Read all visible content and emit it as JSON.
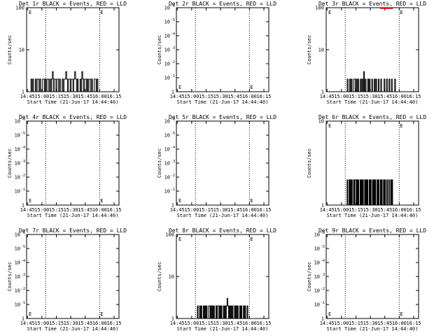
{
  "colors": {
    "events": "#000000",
    "lld": "#ff0000",
    "background": "#ffffff"
  },
  "x_axis": {
    "label": "Start Time (21-Jun-17 14:44:40)",
    "ticks": [
      "14:45",
      "15:00",
      "15:15",
      "15:30",
      "15:45",
      "16:00",
      "16:15"
    ]
  },
  "y_axis_label": "Counts/sec",
  "chart_data": [
    {
      "type": "line",
      "title": "Det 1r BLACK = Events, RED = LLD",
      "y_scale": "log",
      "y_ticks": [
        "1",
        "10",
        "100"
      ],
      "xlim": [
        0,
        29
      ],
      "dotted_lines_x": [
        6,
        23
      ],
      "event_markers": [
        "E",
        "E"
      ],
      "series": [
        {
          "color": "#000000",
          "values": [
            2,
            1,
            2,
            1,
            1,
            2,
            1,
            2,
            2,
            1,
            2,
            1,
            1,
            2,
            2,
            1,
            2,
            1,
            2,
            2,
            1,
            2,
            1,
            2,
            3,
            1,
            2,
            2,
            1,
            2,
            2,
            1,
            2,
            1,
            1,
            2,
            1,
            2,
            2,
            3,
            2,
            1,
            2,
            2,
            1,
            2,
            2,
            1,
            2,
            3,
            2,
            1,
            2,
            1,
            1,
            2,
            1,
            3,
            2,
            1,
            2,
            2,
            1,
            2,
            1,
            2,
            2,
            1,
            2,
            1,
            1,
            2,
            2,
            1,
            2,
            1
          ]
        }
      ],
      "series_x_range": [
        1.5,
        25
      ]
    },
    {
      "type": "line",
      "title": "Det 2r BLACK = Events, RED = LLD",
      "y_scale": "log",
      "y_ticks": [
        "1",
        "10",
        "10",
        "10",
        "10",
        "10",
        "10"
      ],
      "y_tick_exponents": [
        "",
        "-1",
        "-2",
        "-3",
        "-4",
        "-5",
        "-6"
      ],
      "xlim": [
        0,
        29
      ],
      "dotted_lines_x": [
        6,
        23
      ],
      "event_markers": [
        "E",
        "E"
      ]
    },
    {
      "type": "line",
      "title": "Det 3r BLACK = Events, RED = LLD",
      "y_scale": "log",
      "y_ticks": [
        "1",
        "10",
        "100"
      ],
      "xlim": [
        0,
        29
      ],
      "dotted_lines_x": [
        6,
        23
      ],
      "event_markers": [
        "E",
        "E"
      ],
      "series": [
        {
          "color": "#000000",
          "values": [
            1,
            2,
            1,
            1,
            2,
            1,
            2,
            1,
            1,
            2,
            2,
            1,
            2,
            1,
            2,
            1,
            1,
            2,
            1,
            2,
            1,
            3,
            1,
            2,
            1,
            1,
            2,
            1,
            2,
            1,
            1,
            2,
            1,
            1,
            2,
            1,
            2,
            1,
            1,
            2,
            1,
            1,
            2,
            1,
            1,
            1,
            2,
            1,
            1,
            2,
            1,
            1,
            2,
            1,
            1,
            2,
            1,
            1,
            1,
            2
          ]
        }
      ],
      "series_x_range": [
        7,
        24
      ],
      "lld_segment": {
        "x": [
          17,
          21
        ],
        "y": 100
      }
    },
    {
      "type": "line",
      "title": "Det 4r BLACK = Events, RED = LLD",
      "y_scale": "log",
      "y_ticks": [
        "1",
        "10",
        "10",
        "10",
        "10",
        "10",
        "10"
      ],
      "y_tick_exponents": [
        "",
        "-1",
        "-2",
        "-3",
        "-4",
        "-5",
        "-6"
      ],
      "xlim": [
        0,
        29
      ],
      "dotted_lines_x": [
        6,
        23
      ],
      "event_markers": [
        "E",
        "E"
      ]
    },
    {
      "type": "line",
      "title": "Det 5r BLACK = Events, RED = LLD",
      "y_scale": "log",
      "y_ticks": [
        "1",
        "10",
        "10",
        "10",
        "10",
        "10",
        "10"
      ],
      "y_tick_exponents": [
        "",
        "-1",
        "-2",
        "-3",
        "-4",
        "-5",
        "-6"
      ],
      "xlim": [
        0,
        29
      ],
      "dotted_lines_x": [
        6,
        23
      ],
      "event_markers": [
        "E",
        "E"
      ]
    },
    {
      "type": "line",
      "title": "Det 6r BLACK = Events, RED = LLD",
      "y_scale": "log",
      "y_ticks": [
        "1",
        "10"
      ],
      "xlim": [
        0,
        29
      ],
      "dotted_lines_x": [
        6,
        23
      ],
      "event_markers": [
        "E",
        "E"
      ],
      "series": [
        {
          "color": "#000000",
          "values": [
            1,
            2,
            1,
            1,
            2,
            1,
            2,
            1,
            2,
            1,
            1,
            2,
            1,
            2,
            2,
            1,
            2,
            1,
            2,
            1,
            1,
            2,
            1,
            2,
            1,
            2,
            1,
            1,
            2,
            1,
            2,
            1,
            2,
            1,
            1,
            2,
            1,
            2,
            1,
            1,
            2,
            1,
            2,
            1,
            2,
            1,
            1,
            2,
            1,
            2,
            1,
            1,
            2,
            1,
            2,
            1,
            1,
            2,
            1,
            2,
            1,
            1,
            2,
            1,
            1,
            2,
            1,
            1,
            2,
            1,
            2
          ]
        }
      ],
      "series_x_range": [
        7,
        23
      ]
    },
    {
      "type": "line",
      "title": "Det 7r BLACK = Events, RED = LLD",
      "y_scale": "log",
      "y_ticks": [
        "1",
        "10",
        "10",
        "10",
        "10",
        "10",
        "10"
      ],
      "y_tick_exponents": [
        "",
        "-1",
        "-2",
        "-3",
        "-4",
        "-5",
        "-6"
      ],
      "xlim": [
        0,
        29
      ],
      "dotted_lines_x": [
        6,
        23
      ],
      "event_markers": [
        "E",
        "E"
      ]
    },
    {
      "type": "line",
      "title": "Det 8r BLACK = Events, RED = LLD",
      "y_scale": "log",
      "y_ticks": [
        "1",
        "10",
        "100"
      ],
      "xlim": [
        0,
        29
      ],
      "dotted_lines_x": [
        6,
        23
      ],
      "event_markers": [
        "E",
        "E"
      ],
      "series": [
        {
          "color": "#000000",
          "values": [
            1,
            2,
            1,
            1,
            2,
            1,
            2,
            1,
            1,
            2,
            1,
            2,
            1,
            2,
            1,
            1,
            2,
            2,
            1,
            2,
            1,
            2,
            1,
            2,
            1,
            1,
            2,
            1,
            2,
            2,
            1,
            2,
            1,
            2,
            1,
            1,
            2,
            1,
            2,
            1,
            2,
            3,
            2,
            1,
            2,
            1,
            2,
            1,
            2,
            1,
            1,
            2,
            1,
            2,
            1,
            2,
            1,
            1,
            2,
            1,
            2,
            1,
            1,
            2,
            1,
            2,
            1,
            1,
            2,
            1
          ]
        }
      ],
      "series_x_range": [
        7,
        25
      ]
    },
    {
      "type": "line",
      "title": "Det 9r BLACK = Events, RED = LLD",
      "y_scale": "log",
      "y_ticks": [
        "1",
        "10",
        "10",
        "10",
        "10",
        "10",
        "10"
      ],
      "y_tick_exponents": [
        "",
        "-1",
        "-2",
        "-3",
        "-4",
        "-5",
        "-6"
      ],
      "xlim": [
        0,
        29
      ],
      "dotted_lines_x": [
        6,
        23
      ],
      "event_markers": [
        "E",
        "E"
      ]
    }
  ]
}
